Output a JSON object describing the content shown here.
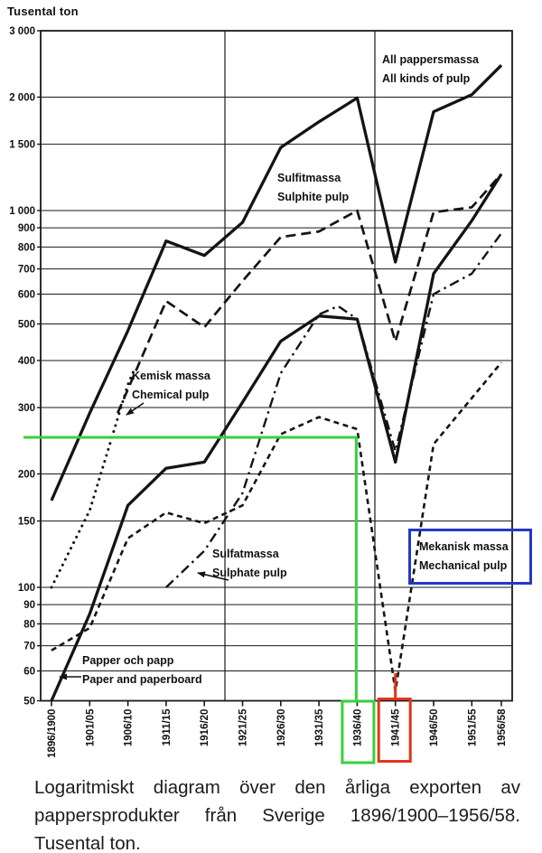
{
  "title": "Tusental ton",
  "caption": "Logaritmiskt diagram över den årliga exporten av pappersprodukter från Sverige 1896/1900–1956/58. Tusental ton.",
  "chart_data": {
    "type": "line",
    "ylabel": "Tusental ton",
    "y_scale": "log",
    "ylim": [
      50,
      3000
    ],
    "grid": "horizontal log gridlines; vertical gridlines at 1920 and 1940 only; full frame",
    "legend_position": "labels placed beside lines inside plot",
    "x_tick_labels": [
      "1896/1900",
      "1901/05",
      "1906/10",
      "1911/15",
      "1916/20",
      "1921/25",
      "1926/30",
      "1931/35",
      "1936/40",
      "1941/45",
      "1946/50",
      "1951/55",
      "1956/58"
    ],
    "y_ticks": [
      {
        "value": 3000,
        "label": "3 000"
      },
      {
        "value": 2000,
        "label": "2 000"
      },
      {
        "value": 1500,
        "label": "1 500"
      },
      {
        "value": 1000,
        "label": "1 000"
      },
      {
        "value": 900,
        "label": "900"
      },
      {
        "value": 800,
        "label": "800"
      },
      {
        "value": 700,
        "label": "700"
      },
      {
        "value": 600,
        "label": "600"
      },
      {
        "value": 500,
        "label": "500"
      },
      {
        "value": 400,
        "label": "400"
      },
      {
        "value": 300,
        "label": "300"
      },
      {
        "value": 200,
        "label": "200"
      },
      {
        "value": 150,
        "label": "150"
      },
      {
        "value": 100,
        "label": "100"
      },
      {
        "value": 90,
        "label": "90"
      },
      {
        "value": 80,
        "label": "80"
      },
      {
        "value": 70,
        "label": "70"
      },
      {
        "value": 60,
        "label": "60"
      },
      {
        "value": 50,
        "label": "50"
      }
    ],
    "series": [
      {
        "id": "all-pulp",
        "label_sv": "All pappersmassa",
        "label_en": "All kinds of pulp",
        "line_style": "solid",
        "points": [
          [
            0,
            170
          ],
          [
            1,
            290
          ],
          [
            2,
            480
          ],
          [
            3,
            830
          ],
          [
            4,
            760
          ],
          [
            5,
            930
          ],
          [
            6,
            1470
          ],
          [
            7,
            1720
          ],
          [
            8,
            1990
          ],
          [
            9,
            730
          ],
          [
            10,
            1830
          ],
          [
            11,
            2030
          ],
          [
            12,
            2430
          ]
        ]
      },
      {
        "id": "sulphite",
        "label_sv": "Sulfitmassa",
        "label_en": "Sulphite pulp",
        "line_style": "long-dash",
        "points": [
          [
            1.73,
            290
          ],
          [
            3,
            575
          ],
          [
            4,
            490
          ],
          [
            5,
            650
          ],
          [
            6,
            850
          ],
          [
            7,
            880
          ],
          [
            8,
            1000
          ],
          [
            9,
            449
          ],
          [
            10,
            990
          ],
          [
            11,
            1020
          ],
          [
            12,
            1250
          ]
        ]
      },
      {
        "id": "chemical",
        "label_sv": "Kemisk massa",
        "label_en": "Chemical pulp",
        "line_style": "dotted",
        "points": [
          [
            0,
            100
          ],
          [
            1,
            160
          ],
          [
            2,
            345
          ],
          [
            2.15,
            375
          ]
        ]
      },
      {
        "id": "sulphate",
        "label_sv": "Sulfatmassa",
        "label_en": "Sulphate pulp",
        "line_style": "dash-dot",
        "points": [
          [
            3,
            100
          ],
          [
            4,
            125
          ],
          [
            5,
            178
          ],
          [
            6,
            370
          ],
          [
            7,
            530
          ],
          [
            7.5,
            558
          ],
          [
            8,
            515
          ],
          [
            9,
            230
          ],
          [
            10,
            600
          ],
          [
            11,
            680
          ],
          [
            12,
            870
          ]
        ]
      },
      {
        "id": "mechanical",
        "label_sv": "Mekanisk massa",
        "label_en": "Mechanical pulp",
        "line_style": "short-dash",
        "points": [
          [
            0,
            68
          ],
          [
            1,
            78
          ],
          [
            2,
            135
          ],
          [
            3,
            158
          ],
          [
            4,
            148
          ],
          [
            5,
            165
          ],
          [
            6,
            255
          ],
          [
            7,
            283
          ],
          [
            8,
            263
          ],
          [
            9,
            53
          ],
          [
            10,
            240
          ],
          [
            11,
            318
          ],
          [
            12,
            395
          ]
        ]
      },
      {
        "id": "paper",
        "label_sv": "Papper och papp",
        "label_en": "Paper and paperboard",
        "line_style": "solid",
        "points": [
          [
            0,
            50
          ],
          [
            1,
            85
          ],
          [
            2,
            165
          ],
          [
            3,
            207
          ],
          [
            4,
            215
          ],
          [
            5,
            310
          ],
          [
            6,
            450
          ],
          [
            7,
            525
          ],
          [
            8,
            515
          ],
          [
            9,
            215
          ],
          [
            10,
            680
          ],
          [
            11,
            940
          ],
          [
            12,
            1250
          ]
        ]
      }
    ],
    "annotations": {
      "green_marker": {
        "color": "#35d23c",
        "highlighted_tick": "1936/40",
        "reference_value": 250
      },
      "red_marker": {
        "color": "#e23418",
        "highlighted_tick": "1941/45"
      },
      "blue_box": {
        "color": "#2438c8"
      }
    }
  }
}
